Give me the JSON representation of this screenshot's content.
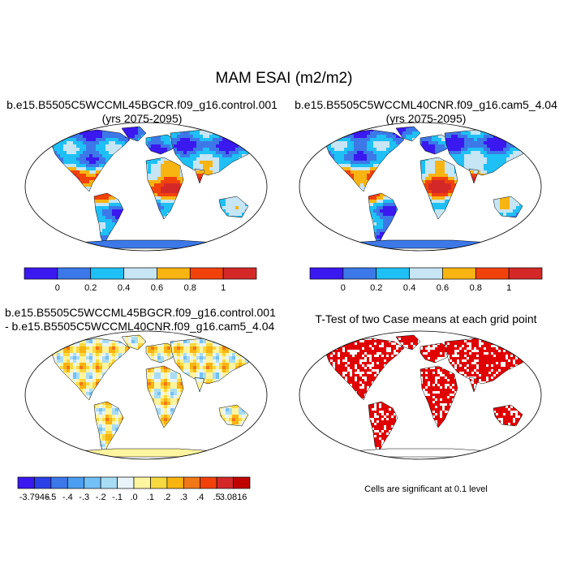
{
  "figure": {
    "title": "MAM ESAI (m2/m2)"
  },
  "panels": [
    {
      "id": "case1",
      "title_line1": "b.e15.B5505C5WCCML45BGCR.f09_g16.control.001",
      "title_line2": "(yrs 2075-2095)",
      "style": "field",
      "colorbar": {
        "colors": [
          "#3a18f0",
          "#3c78e8",
          "#1ec0f5",
          "#c6e5f5",
          "#f8b410",
          "#f2420c",
          "#d42828"
        ],
        "labels": [
          "0",
          "0.2",
          "0.4",
          "0.6",
          "0.8",
          "1"
        ]
      }
    },
    {
      "id": "case2",
      "title_line1": "b.e15.B5505C5WCCML40CNR.f09_g16.cam5_4.04",
      "title_line2": "(yrs 2075-2095)",
      "style": "field",
      "colorbar": {
        "colors": [
          "#3a18f0",
          "#3c78e8",
          "#1ec0f5",
          "#c6e5f5",
          "#f8b410",
          "#f2420c",
          "#d42828"
        ],
        "labels": [
          "0",
          "0.2",
          "0.4",
          "0.6",
          "0.8",
          "1"
        ]
      }
    },
    {
      "id": "difference",
      "title_line1": "b.e15.B5505C5WCCML45BGCR.f09_g16.control.001",
      "title_line2": "- b.e15.B5505C5WCCML40CNR.f09_g16.cam5_4.04",
      "style": "diff",
      "colorbar": {
        "colors": [
          "#3a18f0",
          "#2c40e8",
          "#3c78e8",
          "#4c9ef0",
          "#72c0f5",
          "#a8dcf5",
          "#e8f4fa",
          "#fff4a0",
          "#f8d840",
          "#f8b410",
          "#f07818",
          "#f2420c",
          "#d42828",
          "#c00000"
        ],
        "labels": [
          "-3.7946",
          "-.5",
          "-.4",
          "-.3",
          "-.2",
          "-.1",
          ".0",
          ".1",
          ".2",
          ".3",
          ".4",
          ".5",
          "3.0816"
        ]
      }
    },
    {
      "id": "ttest",
      "title_line1": "T-Test of two Case means at each grid point",
      "title_line2": "",
      "style": "ttest",
      "footnote": "Cells are significant at 0.1 level"
    }
  ],
  "colors": {
    "ocean": "#ffffff",
    "outline": "#000000",
    "significant": "#e00000"
  }
}
